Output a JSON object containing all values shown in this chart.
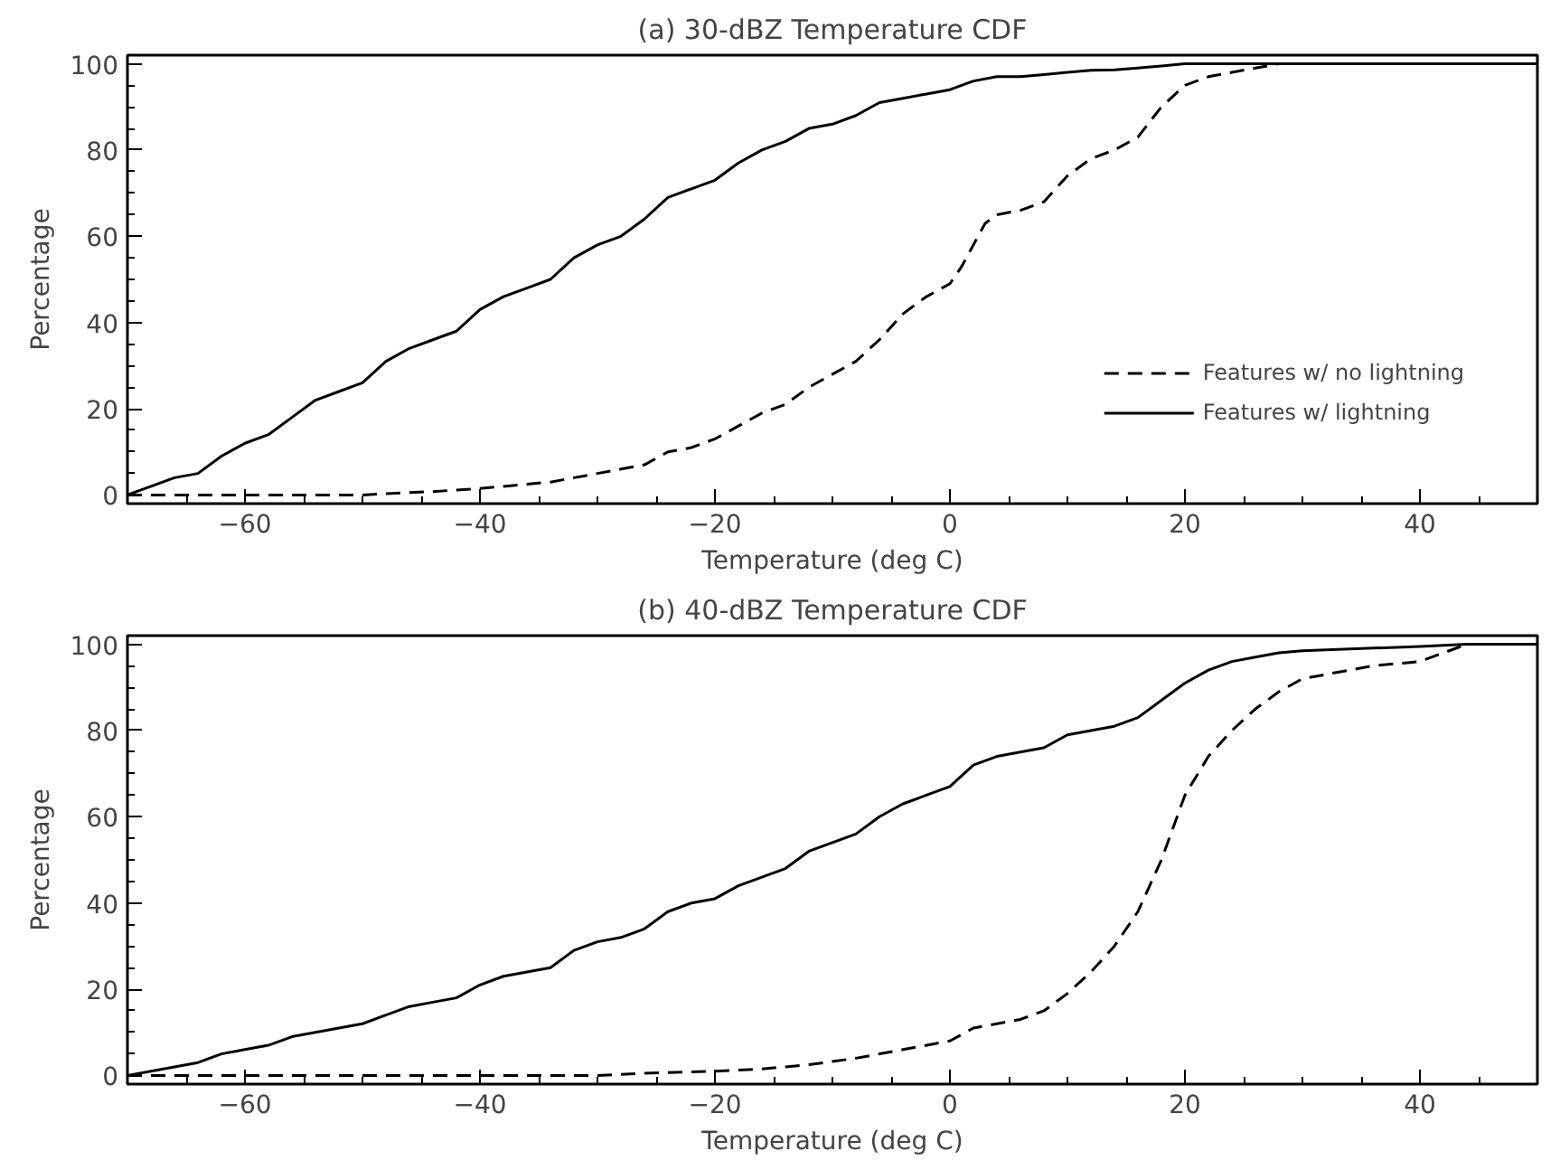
{
  "chart_data": [
    {
      "type": "line",
      "title": "(a) 30-dBZ Temperature CDF",
      "xlabel": "Temperature (deg C)",
      "ylabel": "Percentage",
      "xlim": [
        -70,
        50
      ],
      "ylim": [
        -2,
        102
      ],
      "xticks": [
        -60,
        -40,
        -20,
        0,
        20,
        40
      ],
      "yticks": [
        0,
        20,
        40,
        60,
        80,
        100
      ],
      "grid": false,
      "legend": "bottom right",
      "marker": "none",
      "series": [
        {
          "name": "Features w/ no lightning",
          "color": "#000000",
          "line_style": "dashed",
          "x": [
            -70,
            -50,
            -48,
            -44,
            -40,
            -36,
            -34,
            -32,
            -30,
            -28,
            -26,
            -24,
            -22,
            -20,
            -18,
            -16,
            -14,
            -12,
            -10,
            -8,
            -6,
            -4,
            -2,
            0,
            1,
            2,
            3,
            4,
            6,
            8,
            10,
            12,
            14,
            16,
            18,
            20,
            22,
            24,
            26,
            28,
            50
          ],
          "values": [
            0,
            0,
            0.3,
            0.8,
            1.5,
            2.5,
            3,
            4,
            5,
            6,
            7,
            10,
            11,
            13,
            16,
            19,
            21,
            25,
            28,
            31,
            36,
            42,
            46,
            49,
            53,
            58,
            63,
            65,
            66,
            68,
            74,
            78,
            80,
            83,
            90,
            95,
            97,
            98,
            99,
            100,
            100
          ]
        },
        {
          "name": "Features w/ lightning",
          "color": "#000000",
          "line_style": "solid",
          "x": [
            -70,
            -68,
            -66,
            -64,
            -62,
            -60,
            -58,
            -56,
            -54,
            -52,
            -50,
            -48,
            -46,
            -44,
            -42,
            -40,
            -38,
            -36,
            -34,
            -32,
            -30,
            -28,
            -26,
            -24,
            -22,
            -20,
            -18,
            -16,
            -14,
            -12,
            -10,
            -8,
            -6,
            -4,
            -2,
            0,
            2,
            4,
            6,
            8,
            10,
            12,
            14,
            16,
            18,
            20,
            30,
            50
          ],
          "values": [
            0,
            2,
            4,
            5,
            9,
            12,
            14,
            18,
            22,
            24,
            26,
            31,
            34,
            36,
            38,
            43,
            46,
            48,
            50,
            55,
            58,
            60,
            64,
            69,
            71,
            73,
            77,
            80,
            82,
            85,
            86,
            88,
            91,
            92,
            93,
            94,
            96,
            97,
            97,
            97.5,
            98,
            98.5,
            98.6,
            99,
            99.5,
            100,
            100,
            100
          ]
        }
      ]
    },
    {
      "type": "line",
      "title": "(b) 40-dBZ Temperature CDF",
      "xlabel": "Temperature (deg C)",
      "ylabel": "Percentage",
      "xlim": [
        -70,
        50
      ],
      "ylim": [
        -2,
        102
      ],
      "xticks": [
        -60,
        -40,
        -20,
        0,
        20,
        40
      ],
      "yticks": [
        0,
        20,
        40,
        60,
        80,
        100
      ],
      "grid": false,
      "marker": "none",
      "series": [
        {
          "color": "#000000",
          "line_style": "dashed",
          "x": [
            -70,
            -30,
            -26,
            -20,
            -16,
            -12,
            -8,
            -4,
            0,
            2,
            4,
            6,
            8,
            10,
            12,
            14,
            16,
            18,
            20,
            22,
            24,
            26,
            28,
            30,
            32,
            36,
            40,
            44,
            50
          ],
          "values": [
            0,
            0,
            0.5,
            1,
            1.5,
            2.5,
            4,
            6,
            8,
            11,
            12,
            13,
            15,
            19,
            24,
            30,
            38,
            50,
            65,
            74,
            80,
            85,
            89,
            92,
            93,
            95,
            96,
            100,
            100
          ]
        },
        {
          "color": "#000000",
          "line_style": "solid",
          "x": [
            -70,
            -66,
            -64,
            -62,
            -60,
            -58,
            -56,
            -54,
            -52,
            -50,
            -48,
            -46,
            -44,
            -42,
            -40,
            -38,
            -36,
            -34,
            -32,
            -30,
            -28,
            -26,
            -24,
            -22,
            -20,
            -18,
            -16,
            -14,
            -12,
            -10,
            -8,
            -6,
            -4,
            -2,
            0,
            2,
            4,
            6,
            8,
            10,
            12,
            14,
            16,
            18,
            20,
            22,
            24,
            26,
            28,
            30,
            35,
            40,
            44,
            50
          ],
          "values": [
            0,
            2,
            3,
            5,
            6,
            7,
            9,
            10,
            11,
            12,
            14,
            16,
            17,
            18,
            21,
            23,
            24,
            25,
            29,
            31,
            32,
            34,
            38,
            40,
            41,
            44,
            46,
            48,
            52,
            54,
            56,
            60,
            63,
            65,
            67,
            72,
            74,
            75,
            76,
            79,
            80,
            81,
            83,
            87,
            91,
            94,
            96,
            97,
            98,
            98.5,
            99,
            99.5,
            100,
            100
          ]
        }
      ]
    }
  ]
}
